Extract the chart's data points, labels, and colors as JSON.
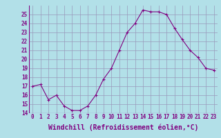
{
  "x": [
    0,
    1,
    2,
    3,
    4,
    5,
    6,
    7,
    8,
    9,
    10,
    11,
    12,
    13,
    14,
    15,
    16,
    17,
    18,
    19,
    20,
    21,
    22,
    23
  ],
  "y": [
    17.0,
    17.2,
    15.5,
    16.0,
    14.8,
    14.3,
    14.3,
    14.8,
    16.0,
    17.8,
    19.0,
    21.0,
    23.0,
    24.0,
    25.5,
    25.3,
    25.3,
    25.0,
    23.5,
    22.2,
    21.0,
    20.2,
    19.0,
    18.8
  ],
  "xlabel": "Windchill (Refroidissement éolien,°C)",
  "ylim": [
    14,
    26
  ],
  "yticks": [
    14,
    15,
    16,
    17,
    18,
    19,
    20,
    21,
    22,
    23,
    24,
    25
  ],
  "xticks": [
    0,
    1,
    2,
    3,
    4,
    5,
    6,
    7,
    8,
    9,
    10,
    11,
    12,
    13,
    14,
    15,
    16,
    17,
    18,
    19,
    20,
    21,
    22,
    23
  ],
  "line_color": "#800080",
  "marker": "+",
  "bg_color": "#b2e0e8",
  "grid_color": "#9999bb",
  "tick_fontsize": 5.5,
  "xlabel_fontsize": 7.0
}
